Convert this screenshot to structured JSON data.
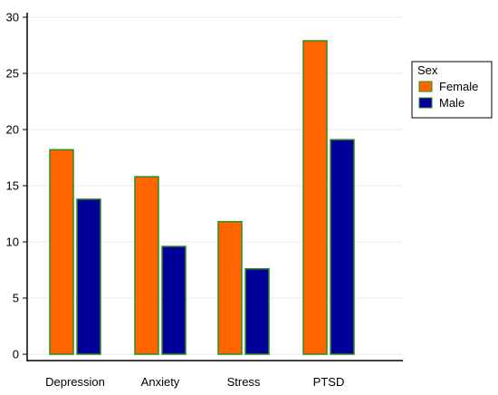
{
  "chart_data": {
    "type": "bar",
    "categories": [
      "Depression",
      "Anxiety",
      "Stress",
      "PTSD"
    ],
    "series": [
      {
        "name": "Female",
        "values": [
          18.2,
          15.8,
          11.8,
          27.9
        ],
        "color": "#FF6600"
      },
      {
        "name": "Male",
        "values": [
          13.8,
          9.6,
          7.6,
          19.1
        ],
        "color": "#000099"
      }
    ],
    "bar_edge_color": "#2E8B22",
    "ylim": [
      0,
      30
    ],
    "yticks": [
      0,
      5,
      10,
      15,
      20,
      25,
      30
    ],
    "grid": true,
    "legend": {
      "title": "Sex",
      "placement": "right"
    }
  }
}
